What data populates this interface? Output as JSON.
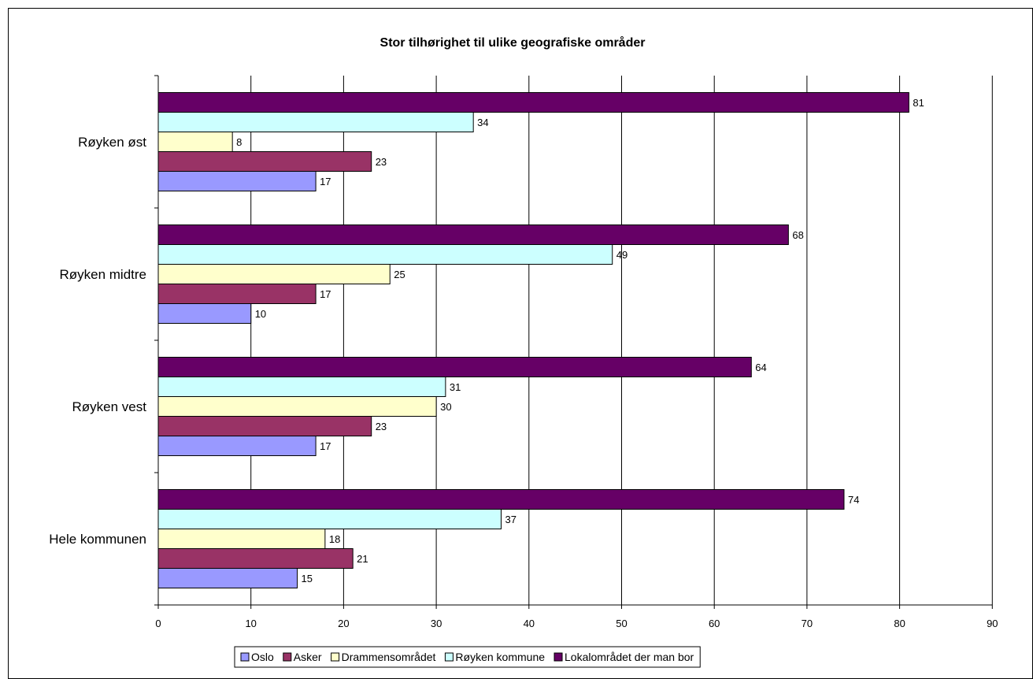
{
  "chart_data": {
    "type": "bar",
    "orientation": "horizontal",
    "title": "Stor tilhørighet til ulike geografiske områder",
    "categories": [
      "Røyken øst",
      "Røyken midtre",
      "Røyken vest",
      "Hele kommunen"
    ],
    "series": [
      {
        "name": "Oslo",
        "color": "#9999ff",
        "values": [
          17,
          10,
          17,
          15
        ]
      },
      {
        "name": "Asker",
        "color": "#993366",
        "values": [
          23,
          17,
          23,
          21
        ]
      },
      {
        "name": "Drammensområdet",
        "color": "#ffffcc",
        "values": [
          8,
          25,
          30,
          18
        ]
      },
      {
        "name": "Røyken kommune",
        "color": "#ccffff",
        "values": [
          34,
          49,
          31,
          37
        ]
      },
      {
        "name": "Lokalområdet der man bor",
        "color": "#660066",
        "values": [
          81,
          68,
          64,
          74
        ]
      }
    ],
    "x_ticks": [
      "0",
      "10",
      "20",
      "30",
      "40",
      "50",
      "60",
      "70",
      "80",
      "90"
    ],
    "xlim": [
      0,
      90
    ],
    "grid": true,
    "legend_position": "bottom"
  }
}
